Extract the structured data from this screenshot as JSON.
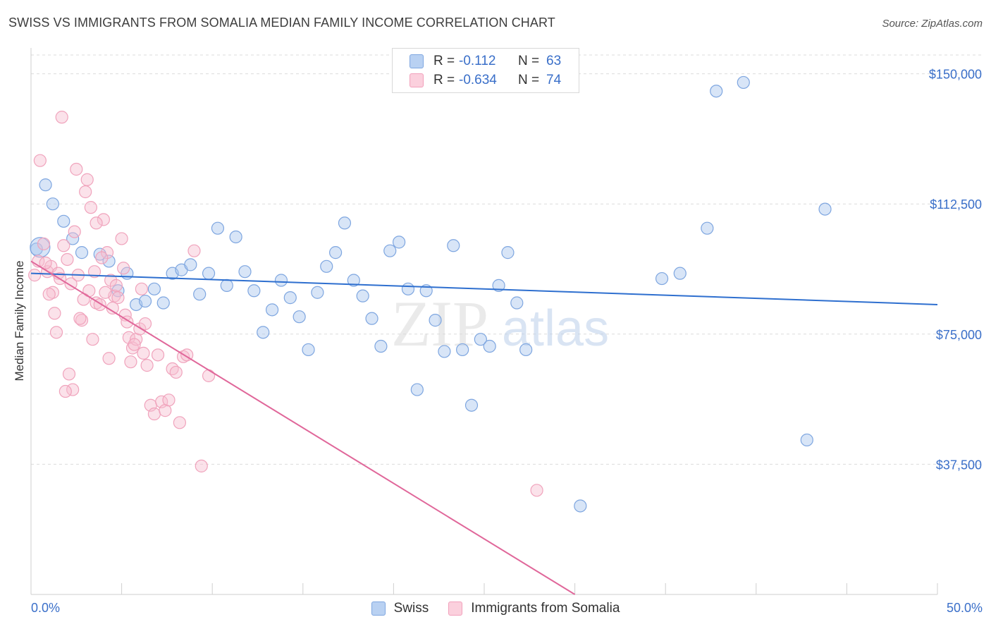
{
  "title": "SWISS VS IMMIGRANTS FROM SOMALIA MEDIAN FAMILY INCOME CORRELATION CHART",
  "source": "Source: ZipAtlas.com",
  "watermark": {
    "zip": "ZIP",
    "atlas": "atlas"
  },
  "legend": {
    "swiss": {
      "r_label": "R =",
      "r_value": "-0.112",
      "n_label": "N =",
      "n_value": "63"
    },
    "somalia": {
      "r_label": "R =",
      "r_value": "-0.634",
      "n_label": "N =",
      "n_value": "74"
    }
  },
  "chart_data": {
    "type": "scatter",
    "title": "SWISS VS IMMIGRANTS FROM SOMALIA MEDIAN FAMILY INCOME CORRELATION CHART",
    "xlabel": "",
    "ylabel": "Median Family Income",
    "xlim": [
      0,
      50
    ],
    "ylim": [
      0,
      155000
    ],
    "x_tick_labels": [
      "0.0%",
      "50.0%"
    ],
    "y_ticks": [
      37500,
      75000,
      112500,
      150000
    ],
    "y_tick_labels": [
      "$37,500",
      "$75,000",
      "$112,500",
      "$150,000"
    ],
    "grid": true,
    "legend_position": "top-center",
    "colors": {
      "swiss": "#7ea6e0",
      "swiss_line": "#2e6fcf",
      "somalia": "#f2a0bb",
      "somalia_line": "#e0679a"
    },
    "series": [
      {
        "name": "Swiss",
        "trend": {
          "x": [
            0,
            50
          ],
          "y": [
            92500,
            83500
          ]
        },
        "points": [
          [
            0.3,
            99500
          ],
          [
            0.8,
            118000
          ],
          [
            1.2,
            112500
          ],
          [
            1.8,
            107500
          ],
          [
            2.3,
            102500
          ],
          [
            2.8,
            98500
          ],
          [
            3.8,
            98000
          ],
          [
            4.3,
            96000
          ],
          [
            4.8,
            87500
          ],
          [
            5.3,
            92500
          ],
          [
            5.8,
            83500
          ],
          [
            6.3,
            84500
          ],
          [
            6.8,
            88000
          ],
          [
            7.3,
            84000
          ],
          [
            7.8,
            92500
          ],
          [
            8.3,
            93500
          ],
          [
            8.8,
            95000
          ],
          [
            9.3,
            86500
          ],
          [
            9.8,
            92500
          ],
          [
            10.3,
            105500
          ],
          [
            10.8,
            89000
          ],
          [
            11.3,
            103000
          ],
          [
            11.8,
            93000
          ],
          [
            12.3,
            87500
          ],
          [
            12.8,
            75500
          ],
          [
            13.3,
            82000
          ],
          [
            13.8,
            90500
          ],
          [
            14.3,
            85500
          ],
          [
            14.8,
            80000
          ],
          [
            15.3,
            70500
          ],
          [
            15.8,
            87000
          ],
          [
            16.3,
            94500
          ],
          [
            16.8,
            98500
          ],
          [
            17.3,
            107000
          ],
          [
            17.8,
            90500
          ],
          [
            18.3,
            86000
          ],
          [
            18.8,
            79500
          ],
          [
            19.3,
            71500
          ],
          [
            19.8,
            99000
          ],
          [
            20.3,
            101500
          ],
          [
            20.8,
            88000
          ],
          [
            21.3,
            59000
          ],
          [
            21.8,
            87500
          ],
          [
            22.3,
            79000
          ],
          [
            22.8,
            70000
          ],
          [
            23.3,
            100500
          ],
          [
            23.8,
            70500
          ],
          [
            24.3,
            54500
          ],
          [
            24.8,
            73500
          ],
          [
            25.3,
            71500
          ],
          [
            25.8,
            89000
          ],
          [
            26.3,
            98500
          ],
          [
            26.8,
            84000
          ],
          [
            27.3,
            70500
          ],
          [
            30.3,
            25500
          ],
          [
            34.8,
            91000
          ],
          [
            35.8,
            92500
          ],
          [
            37.3,
            105500
          ],
          [
            37.8,
            145000
          ],
          [
            39.3,
            147500
          ],
          [
            42.8,
            44500
          ],
          [
            43.8,
            111000
          ],
          [
            0.5,
            100000
          ]
        ]
      },
      {
        "name": "Immigrants from Somalia",
        "trend": {
          "x": [
            0,
            30
          ],
          "y": [
            96000,
            0
          ]
        },
        "points": [
          [
            0.2,
            92000
          ],
          [
            0.4,
            96000
          ],
          [
            0.5,
            125000
          ],
          [
            0.7,
            101000
          ],
          [
            0.9,
            93000
          ],
          [
            1.1,
            94500
          ],
          [
            1.2,
            87000
          ],
          [
            1.3,
            81000
          ],
          [
            1.5,
            92500
          ],
          [
            1.6,
            91000
          ],
          [
            1.8,
            100500
          ],
          [
            2.0,
            96500
          ],
          [
            2.2,
            89500
          ],
          [
            2.4,
            104500
          ],
          [
            2.6,
            92000
          ],
          [
            2.8,
            79000
          ],
          [
            3.0,
            116000
          ],
          [
            3.2,
            87500
          ],
          [
            3.4,
            73500
          ],
          [
            3.6,
            84000
          ],
          [
            3.8,
            83500
          ],
          [
            4.0,
            108000
          ],
          [
            4.2,
            98500
          ],
          [
            4.4,
            90500
          ],
          [
            4.6,
            86000
          ],
          [
            4.8,
            85500
          ],
          [
            5.0,
            102500
          ],
          [
            5.2,
            80500
          ],
          [
            5.4,
            74000
          ],
          [
            5.6,
            71000
          ],
          [
            5.8,
            73500
          ],
          [
            6.0,
            76500
          ],
          [
            6.2,
            69500
          ],
          [
            6.4,
            66000
          ],
          [
            6.6,
            54500
          ],
          [
            6.8,
            52000
          ],
          [
            7.0,
            69000
          ],
          [
            7.2,
            55500
          ],
          [
            7.4,
            53000
          ],
          [
            7.6,
            56000
          ],
          [
            7.8,
            65000
          ],
          [
            8.0,
            64000
          ],
          [
            8.2,
            49500
          ],
          [
            8.4,
            68500
          ],
          [
            8.6,
            69000
          ],
          [
            9.0,
            99000
          ],
          [
            9.4,
            37000
          ],
          [
            9.8,
            63000
          ],
          [
            1.7,
            137500
          ],
          [
            2.5,
            122500
          ],
          [
            3.1,
            119500
          ],
          [
            3.3,
            111500
          ],
          [
            3.6,
            107000
          ],
          [
            3.9,
            97000
          ],
          [
            1.0,
            86500
          ],
          [
            1.4,
            75500
          ],
          [
            2.1,
            63500
          ],
          [
            2.3,
            59000
          ],
          [
            2.7,
            79500
          ],
          [
            2.9,
            85000
          ],
          [
            3.5,
            93000
          ],
          [
            4.1,
            87000
          ],
          [
            4.3,
            68000
          ],
          [
            4.5,
            82500
          ],
          [
            4.7,
            89000
          ],
          [
            5.1,
            94000
          ],
          [
            5.3,
            78500
          ],
          [
            5.5,
            67000
          ],
          [
            5.7,
            72000
          ],
          [
            6.1,
            88000
          ],
          [
            6.3,
            78000
          ],
          [
            0.8,
            95500
          ],
          [
            1.9,
            58500
          ],
          [
            27.9,
            30000
          ]
        ]
      }
    ]
  },
  "bottom_legend": {
    "swiss_label": "Swiss",
    "somalia_label": "Immigrants from Somalia"
  }
}
